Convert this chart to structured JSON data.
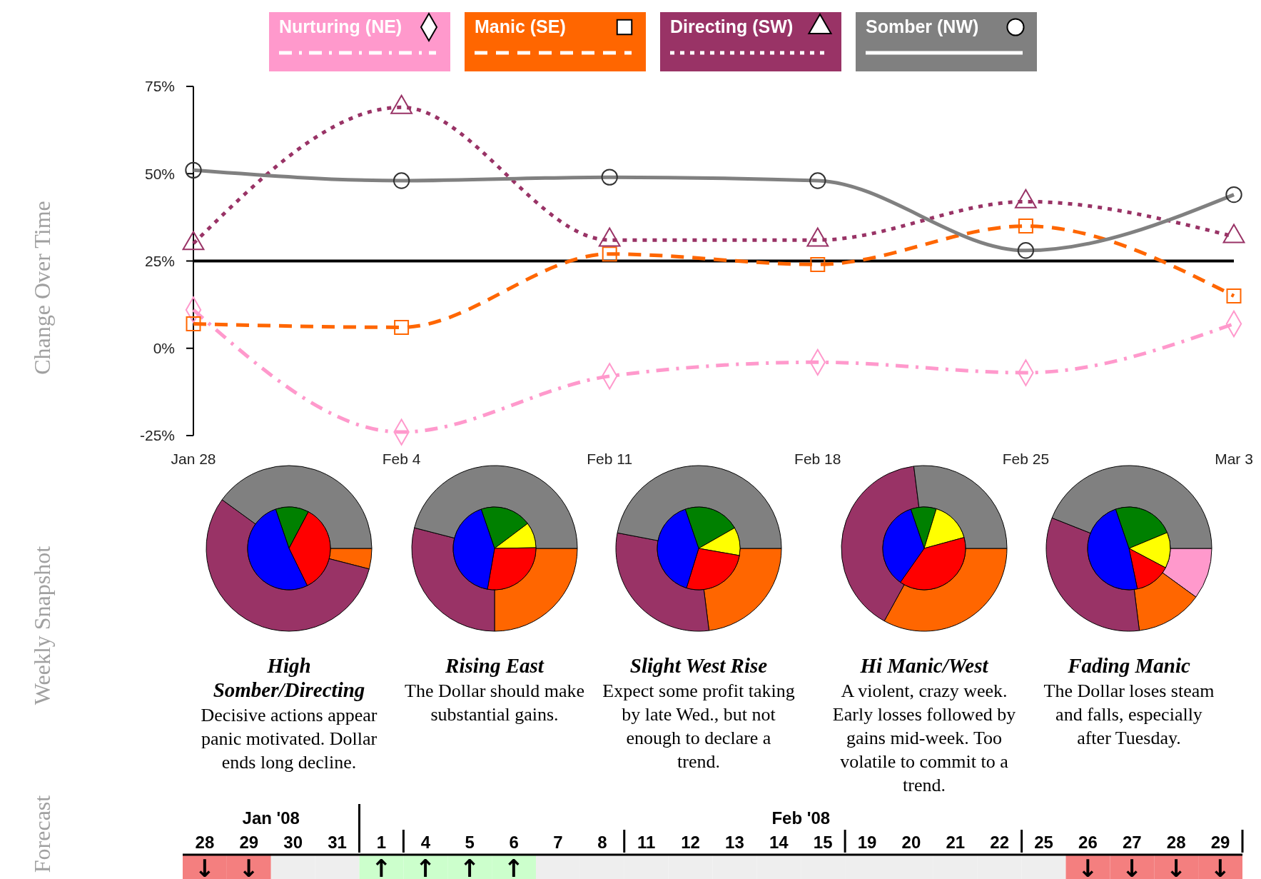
{
  "chart_data": [
    {
      "type": "line",
      "ylabel": "Change Over Time",
      "categories": [
        "Jan 28",
        "Feb 4",
        "Feb 11",
        "Feb 18",
        "Feb 25",
        "Mar 3"
      ],
      "ylim": [
        -25,
        75
      ],
      "yticks": [
        {
          "value": -25,
          "label": "-25%"
        },
        {
          "value": 0,
          "label": "0%"
        },
        {
          "value": 25,
          "label": "25%"
        },
        {
          "value": 50,
          "label": "50%"
        },
        {
          "value": 75,
          "label": "75%"
        }
      ],
      "grid": false,
      "legend": "top",
      "ref_lines": [
        {
          "axis": "y",
          "value": 25,
          "color": "#000000"
        }
      ],
      "series": [
        {
          "name": "Nurturing (NE)",
          "color": "#ff99cc",
          "marker": "diamond",
          "line_style": "dashdot",
          "values": [
            11,
            -24,
            -8,
            -4,
            -7,
            7
          ]
        },
        {
          "name": "Manic (SE)",
          "color": "#ff6600",
          "marker": "square",
          "line_style": "dashed",
          "values": [
            7,
            6,
            27,
            24,
            35,
            15
          ]
        },
        {
          "name": "Directing (SW)",
          "color": "#993366",
          "marker": "triangle",
          "line_style": "dotted",
          "values": [
            30,
            69,
            31,
            31,
            42,
            32
          ]
        },
        {
          "name": "Somber (NW)",
          "color": "#808080",
          "marker": "circle",
          "line_style": "solid",
          "values": [
            51,
            48,
            49,
            48,
            28,
            44
          ]
        }
      ]
    },
    {
      "type": "donut",
      "ylabel": "Weekly Snapshot",
      "title": "High Somber/Directing",
      "annotations": [
        "Decisive actions appear panic motivated.  Dollar ends long decline."
      ],
      "categories": [
        null,
        null,
        null,
        null
      ],
      "colors": [
        "#ff99cc",
        "#ff6600",
        "#993366",
        "#808080"
      ],
      "values": [
        0,
        4,
        56,
        40
      ]
    },
    {
      "type": "pie",
      "categories": [
        null,
        null,
        null,
        null
      ],
      "colors": [
        "#008000",
        "#ffff00",
        "#ff0000",
        "#0000ff"
      ],
      "values": [
        13,
        0,
        35,
        52
      ]
    },
    {
      "type": "donut",
      "title": "Rising East",
      "annotations": [
        "The Dollar should make substantial gains."
      ],
      "categories": [
        null,
        null,
        null,
        null
      ],
      "colors": [
        "#ff99cc",
        "#ff6600",
        "#993366",
        "#808080"
      ],
      "values": [
        0,
        25,
        29,
        46
      ]
    },
    {
      "type": "pie",
      "categories": [
        null,
        null,
        null,
        null
      ],
      "colors": [
        "#008000",
        "#ffff00",
        "#ff0000",
        "#0000ff"
      ],
      "values": [
        20,
        10,
        28,
        42
      ]
    },
    {
      "type": "donut",
      "title": "Slight West Rise",
      "annotations": [
        "Expect some profit taking by late Wed., but not enough to declare a trend."
      ],
      "categories": [
        null,
        null,
        null,
        null
      ],
      "colors": [
        "#ff99cc",
        "#ff6600",
        "#993366",
        "#808080"
      ],
      "values": [
        0,
        23,
        30,
        47
      ]
    },
    {
      "type": "pie",
      "categories": [
        null,
        null,
        null,
        null
      ],
      "colors": [
        "#008000",
        "#ffff00",
        "#ff0000",
        "#0000ff"
      ],
      "values": [
        22,
        11,
        27,
        40
      ]
    },
    {
      "type": "donut",
      "title": "Hi Manic/West",
      "annotations": [
        "A violent, crazy week. Early losses followed by gains mid-week.  Too volatile to commit to a trend."
      ],
      "categories": [
        null,
        null,
        null,
        null
      ],
      "colors": [
        "#ff99cc",
        "#ff6600",
        "#993366",
        "#808080"
      ],
      "values": [
        0,
        33,
        40,
        27
      ]
    },
    {
      "type": "pie",
      "categories": [
        null,
        null,
        null,
        null
      ],
      "colors": [
        "#008000",
        "#ffff00",
        "#ff0000",
        "#0000ff"
      ],
      "values": [
        10,
        16,
        39,
        35
      ]
    },
    {
      "type": "donut",
      "title": "Fading Manic",
      "annotations": [
        "The Dollar loses steam and falls, especially after Tuesday."
      ],
      "categories": [
        null,
        null,
        null,
        null
      ],
      "colors": [
        "#ff99cc",
        "#ff6600",
        "#993366",
        "#808080"
      ],
      "values": [
        10,
        13,
        33,
        44
      ]
    },
    {
      "type": "pie",
      "categories": [
        null,
        null,
        null,
        null
      ],
      "colors": [
        "#008000",
        "#ffff00",
        "#ff0000",
        "#0000ff"
      ],
      "values": [
        24,
        14,
        14,
        48
      ]
    },
    {
      "type": "other",
      "ylabel": "Forecast",
      "annotations": [
        "Jan '08",
        "Feb '08"
      ],
      "categories": [
        "28",
        "29",
        "30",
        "31",
        "1",
        "4",
        "5",
        "6",
        "7",
        "8",
        "11",
        "12",
        "13",
        "14",
        "15",
        "19",
        "20",
        "21",
        "22",
        "25",
        "26",
        "27",
        "28",
        "29"
      ],
      "value_labels": [
        "↓",
        "↓",
        null,
        null,
        "↑",
        "↑",
        "↑",
        "↑",
        null,
        null,
        null,
        null,
        null,
        null,
        null,
        null,
        null,
        null,
        null,
        null,
        "↓",
        "↓",
        "↓",
        "↓"
      ],
      "colors": [
        "#f47f7f",
        "#f47f7f",
        "#eeeeee",
        "#eeeeee",
        "#ccffcc",
        "#ccffcc",
        "#ccffcc",
        "#ccffcc",
        "#eeeeee",
        "#eeeeee",
        "#eeeeee",
        "#eeeeee",
        "#eeeeee",
        "#eeeeee",
        "#eeeeee",
        "#eeeeee",
        "#eeeeee",
        "#eeeeee",
        "#eeeeee",
        "#eeeeee",
        "#f47f7f",
        "#f47f7f",
        "#f47f7f",
        "#f47f7f"
      ]
    }
  ]
}
